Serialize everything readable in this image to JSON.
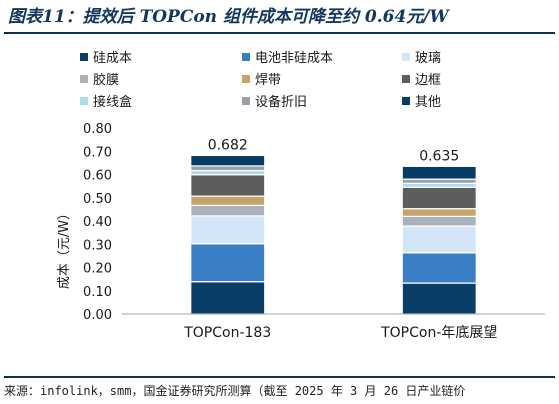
{
  "header": {
    "title": "图表11：提效后 TOPCon 组件成本可降至约 0.64元/W"
  },
  "footer": {
    "source": "来源：infolink，smm，国金证券研究所测算（截至 2025 年 3 月 26 日产业链价"
  },
  "chart_data": {
    "type": "bar",
    "stacked": true,
    "categories": [
      "TOPCon-183",
      "TOPCon-年底展望"
    ],
    "ylabel": "成本（元/W）",
    "ylim": [
      0,
      0.8
    ],
    "yticks": [
      "0.00",
      "0.10",
      "0.20",
      "0.30",
      "0.40",
      "0.50",
      "0.60",
      "0.70",
      "0.80"
    ],
    "legend_position": "top",
    "totals": [
      "0.682",
      "0.635"
    ],
    "series": [
      {
        "name": "硅成本",
        "color": "#0b3e66",
        "values": [
          0.139,
          0.133
        ]
      },
      {
        "name": "电池非硅成本",
        "color": "#3a7fc4",
        "values": [
          0.163,
          0.13
        ]
      },
      {
        "name": "玻璃",
        "color": "#d3e6f7",
        "values": [
          0.12,
          0.115
        ]
      },
      {
        "name": "胶膜",
        "color": "#aab1bb",
        "values": [
          0.045,
          0.042
        ]
      },
      {
        "name": "焊带",
        "color": "#c4a467",
        "values": [
          0.04,
          0.033
        ]
      },
      {
        "name": "边框",
        "color": "#5d5d5d",
        "values": [
          0.092,
          0.092
        ]
      },
      {
        "name": "接线盒",
        "color": "#a9dcec",
        "values": [
          0.018,
          0.017
        ]
      },
      {
        "name": "设备折旧",
        "color": "#9aa0aa",
        "values": [
          0.02,
          0.018
        ]
      },
      {
        "name": "其他",
        "color": "#073c64",
        "values": [
          0.045,
          0.055
        ]
      }
    ]
  }
}
